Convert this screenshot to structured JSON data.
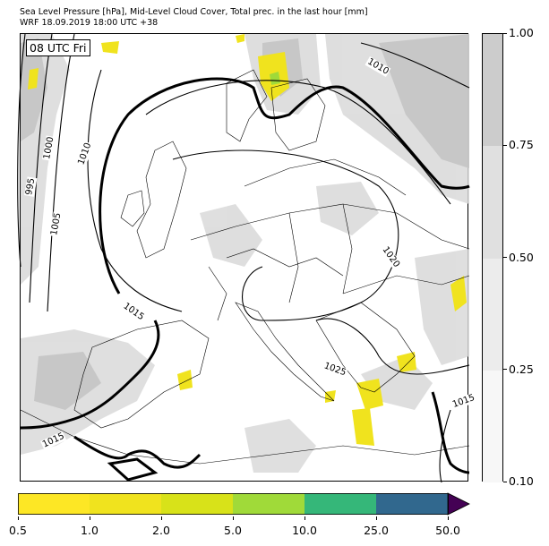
{
  "header": {
    "title_line1": "Sea Level Pressure [hPa], Mid-Level Cloud Cover, Total prec. in the last hour [mm]",
    "title_line2": "WRF 18.09.2019 18:00 UTC +38"
  },
  "map": {
    "time_label": "08 UTC Fri",
    "isobar_labels": [
      "995",
      "1000",
      "1005",
      "1010",
      "1015",
      "1015",
      "1015",
      "1020",
      "1025",
      "1010"
    ]
  },
  "cloud_colorbar": {
    "ticks": [
      "0.10",
      "0.25",
      "0.50",
      "0.75",
      "1.00"
    ],
    "colors": [
      "#f7f7f7",
      "#ececec",
      "#e0e0e0",
      "#cccccc"
    ]
  },
  "precip_colorbar": {
    "ticks": [
      "0.5",
      "1.0",
      "2.0",
      "5.0",
      "10.0",
      "25.0",
      "50.0"
    ],
    "colors": [
      "#fde725",
      "#f0e31e",
      "#d8e219",
      "#a0da39",
      "#35b779",
      "#31688e",
      "#3a4e8c"
    ],
    "extend_color": "#440154"
  }
}
